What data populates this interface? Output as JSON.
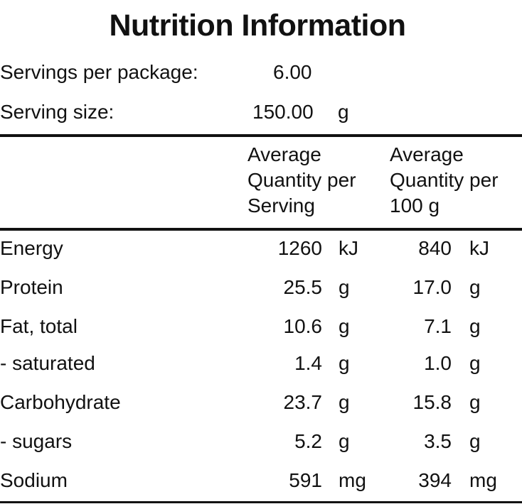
{
  "title": "Nutrition Information",
  "servings": {
    "per_package_label": "Servings per package:",
    "per_package_value": "6.00",
    "size_label": "Serving size:",
    "size_value": "150.00",
    "size_unit": "g"
  },
  "columns": {
    "per_serving": [
      "Average",
      "Quantity per",
      "Serving"
    ],
    "per_100g": [
      "Average",
      "Quantity per",
      "100 g"
    ]
  },
  "rows": [
    {
      "name": "Energy",
      "per_serving": "1260",
      "unit1": "kJ",
      "per_100g": "840",
      "unit2": "kJ"
    },
    {
      "name": "Protein",
      "per_serving": "25.5",
      "unit1": "g",
      "per_100g": "17.0",
      "unit2": "g"
    },
    {
      "name": "Fat, total",
      "per_serving": "10.6",
      "unit1": "g",
      "per_100g": "7.1",
      "unit2": "g"
    },
    {
      "name": "- saturated",
      "per_serving": "1.4",
      "unit1": "g",
      "per_100g": "1.0",
      "unit2": "g"
    },
    {
      "name": "Carbohydrate",
      "per_serving": "23.7",
      "unit1": "g",
      "per_100g": "15.8",
      "unit2": "g"
    },
    {
      "name": "- sugars",
      "per_serving": "5.2",
      "unit1": "g",
      "per_100g": "3.5",
      "unit2": "g"
    },
    {
      "name": "Sodium",
      "per_serving": "591",
      "unit1": "mg",
      "per_100g": "394",
      "unit2": "mg"
    }
  ]
}
